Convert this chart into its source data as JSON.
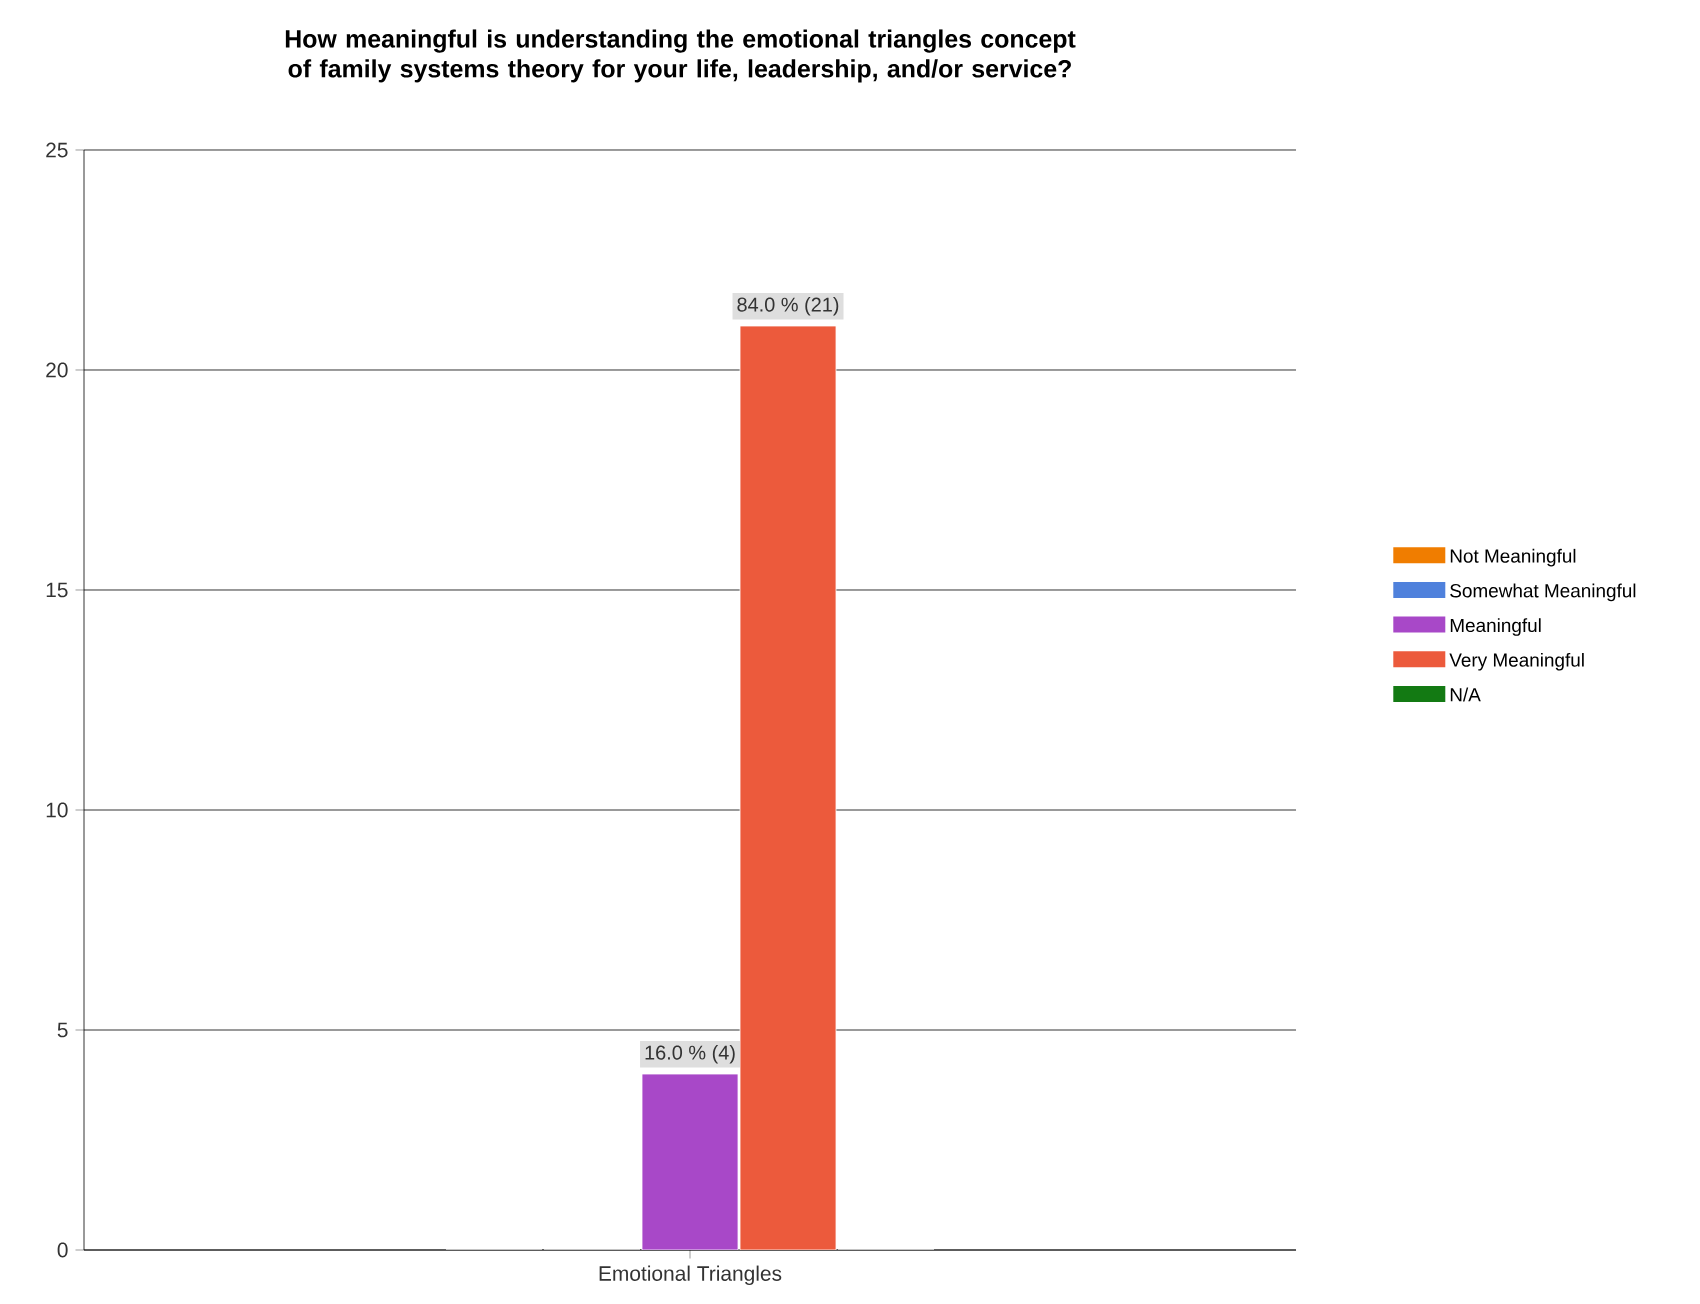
{
  "chart_data": {
    "type": "bar",
    "title": "How meaningful is understanding the emotional triangles concept of family systems theory for your life, leadership, and/or service?",
    "categories": [
      "Emotional Triangles"
    ],
    "series": [
      {
        "name": "Not Meaningful",
        "color": "#f07d00",
        "values": [
          0
        ],
        "value_labels": [
          null
        ]
      },
      {
        "name": "Somewhat Meaningful",
        "color": "#4f81dc",
        "values": [
          0
        ],
        "value_labels": [
          null
        ]
      },
      {
        "name": "Meaningful",
        "color": "#a848c8",
        "values": [
          4
        ],
        "value_labels": [
          "16.0 % (4)"
        ]
      },
      {
        "name": "Very Meaningful",
        "color": "#ec5a3c",
        "values": [
          21
        ],
        "value_labels": [
          "84.0 % (21)"
        ]
      },
      {
        "name": "N/A",
        "color": "#137a13",
        "values": [
          0
        ],
        "value_labels": [
          null
        ]
      }
    ],
    "ylim": [
      0,
      25
    ],
    "yticks": [
      0,
      5,
      10,
      15,
      20,
      25
    ],
    "grid": "y",
    "legend": "right"
  }
}
